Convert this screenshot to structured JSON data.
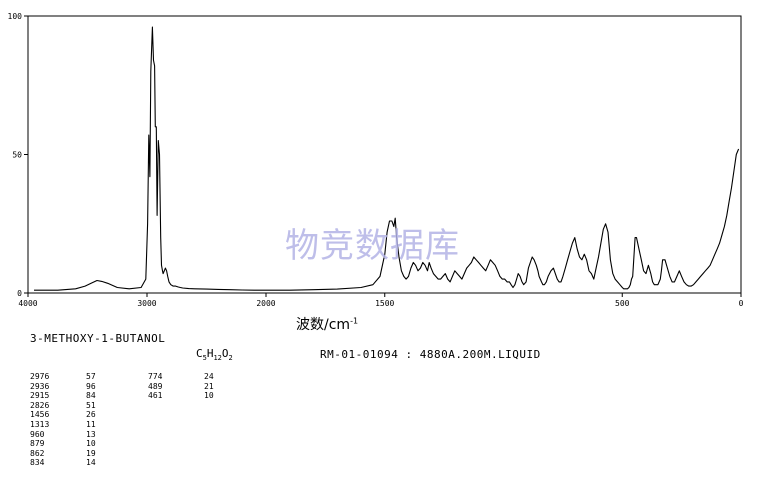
{
  "watermark": "物竞数据库",
  "compound_name": "3-METHOXY-1-BUTANOL",
  "formula": {
    "C": "C",
    "c_count": "5",
    "H": "H",
    "h_count": "12",
    "O": "O",
    "o_count": "2"
  },
  "record_info": "RM-01-01094 : 4880A.200M.LIQUID",
  "chart_data": {
    "type": "line",
    "xlabel_main": "波数/cm",
    "xlabel_sup": "-1",
    "xlim": [
      4000,
      0
    ],
    "ylim": [
      0,
      100
    ],
    "x_ticks": [
      "4000",
      "3000",
      "2000",
      "1500",
      "500",
      "0"
    ],
    "y_ticks": [
      "100",
      "50",
      "0"
    ],
    "x_tick_values": [
      4000,
      3000,
      2000,
      1500,
      500,
      0
    ],
    "y_tick_values": [
      100,
      50,
      0
    ],
    "grid": false,
    "series": [
      {
        "x": [
          3950,
          3750,
          3600,
          3520,
          3470,
          3420,
          3380,
          3330,
          3250,
          3150,
          3050,
          3010,
          2995,
          2985,
          2976,
          2968,
          2955,
          2945,
          2936,
          2930,
          2922,
          2915,
          2905,
          2895,
          2885,
          2878,
          2870,
          2865,
          2855,
          2845,
          2835,
          2826,
          2815,
          2800,
          2780,
          2760,
          2740,
          2720,
          2700,
          2650,
          2600,
          2500,
          2400,
          2300,
          2200,
          2100,
          2000,
          1900,
          1800,
          1700,
          1600,
          1550,
          1520,
          1500,
          1490,
          1480,
          1470,
          1462,
          1456,
          1450,
          1440,
          1430,
          1420,
          1410,
          1400,
          1390,
          1380,
          1370,
          1360,
          1350,
          1340,
          1330,
          1320,
          1313,
          1305,
          1295,
          1285,
          1275,
          1265,
          1255,
          1245,
          1235,
          1225,
          1215,
          1205,
          1195,
          1185,
          1175,
          1165,
          1155,
          1145,
          1135,
          1125,
          1115,
          1105,
          1095,
          1085,
          1075,
          1065,
          1055,
          1045,
          1035,
          1025,
          1015,
          1005,
          995,
          985,
          975,
          968,
          960,
          952,
          945,
          938,
          930,
          922,
          915,
          905,
          895,
          887,
          879,
          871,
          862,
          855,
          850,
          845,
          840,
          834,
          828,
          820,
          812,
          800,
          790,
          782,
          774,
          766,
          758,
          750,
          740,
          730,
          720,
          710,
          700,
          690,
          680,
          670,
          660,
          650,
          640,
          630,
          620,
          610,
          600,
          590,
          580,
          570,
          560,
          550,
          540,
          530,
          520,
          510,
          500,
          494,
          489,
          484,
          478,
          472,
          466,
          461,
          456,
          451,
          446,
          440,
          430,
          420,
          410,
          400,
          390,
          380,
          372,
          365,
          358,
          350,
          345,
          340,
          335,
          330,
          320,
          310,
          300,
          290,
          280,
          270,
          260,
          250,
          240,
          230,
          220,
          210,
          200,
          190,
          180,
          170,
          160,
          150,
          140,
          130,
          120,
          110,
          100,
          90,
          80,
          70,
          60,
          50,
          40,
          30,
          20,
          10
        ],
        "y": [
          1,
          1,
          1.5,
          2.5,
          3.5,
          4.5,
          4.2,
          3.5,
          2,
          1.5,
          2,
          5,
          25,
          57,
          42,
          80,
          96,
          84,
          82,
          60,
          60,
          28,
          55,
          50,
          20,
          10,
          8,
          7,
          8,
          9,
          8,
          6,
          4,
          3,
          2.5,
          2.5,
          2.2,
          2,
          1.8,
          1.6,
          1.5,
          1.4,
          1.3,
          1.2,
          1.1,
          1,
          1,
          1,
          1.2,
          1.4,
          2,
          3,
          6,
          14,
          22,
          26,
          26,
          24,
          27,
          20,
          13,
          8,
          6,
          5,
          6,
          9,
          11,
          10,
          8,
          9,
          11,
          10,
          8,
          11,
          9,
          7,
          6,
          5,
          5,
          6,
          7,
          5,
          4,
          6,
          8,
          7,
          6,
          5,
          7,
          9,
          10,
          11,
          13,
          12,
          11,
          10,
          9,
          8,
          10,
          12,
          11,
          10,
          8,
          6,
          5,
          5,
          4,
          4,
          3,
          2,
          3,
          5,
          7,
          6,
          4,
          3,
          4,
          9,
          11,
          13,
          12,
          10,
          8,
          6,
          5,
          4,
          3,
          3,
          4,
          6,
          8,
          9,
          7,
          5,
          4,
          4,
          6,
          9,
          12,
          15,
          18,
          20,
          16,
          13,
          12,
          14,
          12,
          8,
          7,
          5,
          9,
          13,
          18,
          23,
          25,
          22,
          12,
          7,
          5,
          4,
          3,
          2,
          1.5,
          1.5,
          1.5,
          1.5,
          2,
          3,
          5,
          6,
          13,
          20,
          20,
          16,
          12,
          8,
          7,
          10,
          7,
          4,
          3,
          3,
          3,
          4,
          5,
          8,
          12,
          12,
          9,
          6,
          4,
          4,
          6,
          8,
          6,
          4,
          3,
          2.5,
          2.5,
          3,
          4,
          5,
          6,
          7,
          8,
          9,
          10,
          12,
          14,
          16,
          18,
          21,
          24,
          28,
          33,
          38,
          44,
          50,
          52
        ]
      }
    ],
    "peaks_col1": [
      {
        "wn": "2976",
        "t": "57"
      },
      {
        "wn": "2936",
        "t": "96"
      },
      {
        "wn": "2915",
        "t": "84"
      },
      {
        "wn": "2826",
        "t": "51"
      },
      {
        "wn": "1456",
        "t": "26"
      },
      {
        "wn": "1313",
        "t": "11"
      },
      {
        "wn": "960",
        "t": "13"
      },
      {
        "wn": "879",
        "t": "10"
      },
      {
        "wn": "862",
        "t": "19"
      },
      {
        "wn": "834",
        "t": "14"
      }
    ],
    "peaks_col2": [
      {
        "wn": "774",
        "t": "24"
      },
      {
        "wn": "489",
        "t": "21"
      },
      {
        "wn": "461",
        "t": "10"
      }
    ]
  }
}
